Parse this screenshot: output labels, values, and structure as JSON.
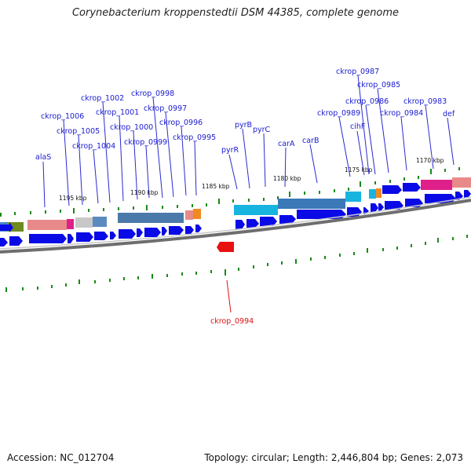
{
  "title": "Corynebacterium kroppenstedtii DSM 44385, complete genome",
  "footer": {
    "accession": "Accession: NC_012704",
    "summary": "Topology: circular; Length: 2,446,804 bp; Genes: 2,073"
  },
  "colors": {
    "gene_label": "#1a1ad0",
    "highlight_label": "#dd1111",
    "cds_blue": "#0a0ae6",
    "backbone": "#7a7a7a",
    "tick_green": "#1a8a1a"
  },
  "scale_labels": [
    "1195 kbp",
    "1190 kbp",
    "1185 kbp",
    "1180 kbp",
    "1175 kbp",
    "1170 kbp"
  ],
  "gene_labels": [
    "alaS",
    "ckrop_1006",
    "ckrop_1005",
    "ckrop_1004",
    "ckrop_1002",
    "ckrop_1001",
    "ckrop_1000",
    "ckrop_0999",
    "ckrop_0998",
    "ckrop_0997",
    "ckrop_0996",
    "ckrop_0995",
    "pyrR",
    "pyrB",
    "pyrC",
    "carA",
    "carB",
    "ckrop_0989",
    "cihF",
    "ckrop_0987",
    "ckrop_0986",
    "ckrop_0985",
    "ckrop_0984",
    "ckrop_0983",
    "def"
  ],
  "highlight_gene": "ckrop_0994"
}
